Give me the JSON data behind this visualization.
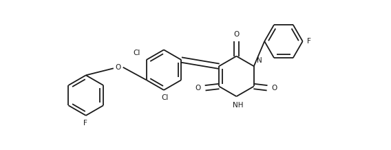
{
  "bg_color": "#ffffff",
  "line_color": "#1a1a1a",
  "lw": 1.3,
  "fs": 7.5,
  "fig_width": 5.68,
  "fig_height": 2.18,
  "dpi": 100,
  "xlim": [
    0,
    5.68
  ],
  "ylim": [
    0,
    2.18
  ]
}
